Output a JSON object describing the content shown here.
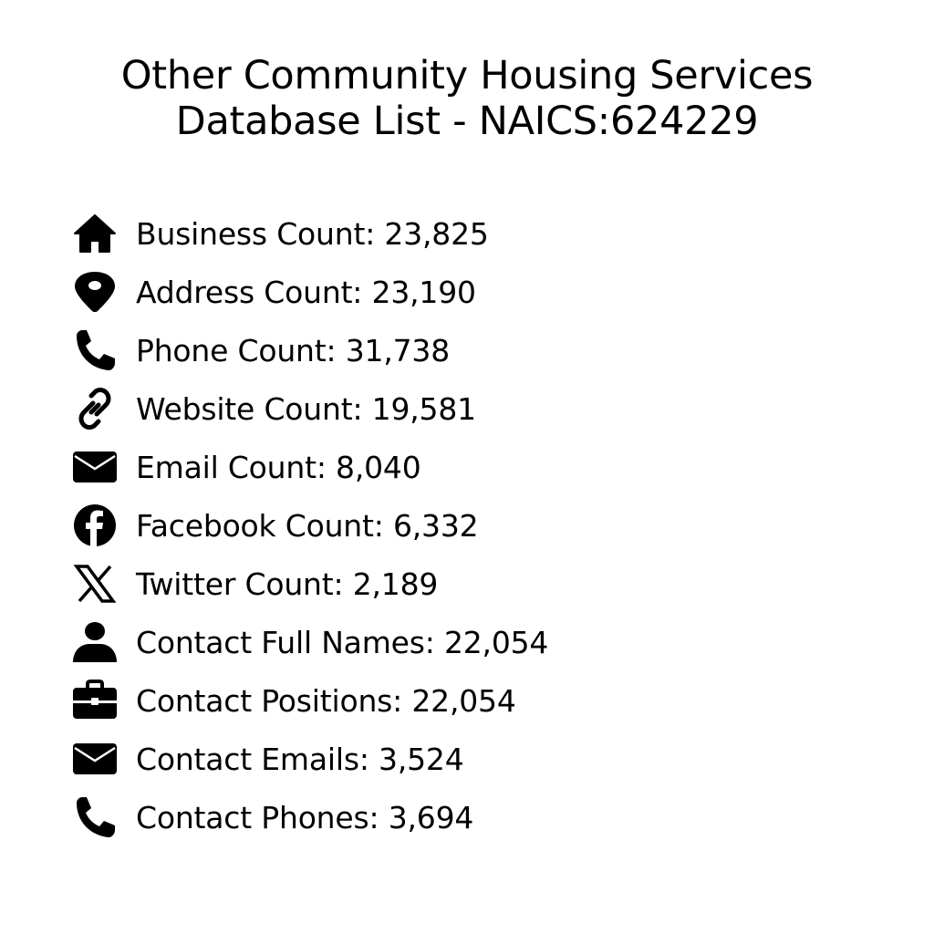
{
  "title": {
    "line1": "Other Community Housing Services",
    "line2": "Database List - NAICS:624229"
  },
  "items": [
    {
      "icon": "house-icon",
      "label": "Business Count: 23,825"
    },
    {
      "icon": "map-pin-icon",
      "label": "Address Count: 23,190"
    },
    {
      "icon": "phone-icon",
      "label": "Phone Count: 31,738"
    },
    {
      "icon": "link-icon",
      "label": "Website Count: 19,581"
    },
    {
      "icon": "envelope-icon",
      "label": "Email Count: 8,040"
    },
    {
      "icon": "facebook-icon",
      "label": "Facebook Count: 6,332"
    },
    {
      "icon": "x-twitter-icon",
      "label": "Twitter Count: 2,189"
    },
    {
      "icon": "user-icon",
      "label": "Contact Full Names: 22,054"
    },
    {
      "icon": "briefcase-icon",
      "label": "Contact Positions: 22,054"
    },
    {
      "icon": "envelope-icon",
      "label": "Contact Emails: 3,524"
    },
    {
      "icon": "phone-icon",
      "label": "Contact Phones: 3,694"
    }
  ]
}
